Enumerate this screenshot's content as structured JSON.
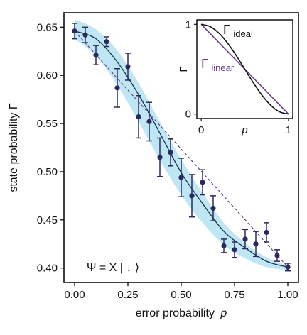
{
  "chart_data": [
    {
      "type": "scatter",
      "xlabel": "error probability",
      "xlabel_var": "p",
      "ylabel": "state probability Γ",
      "xlim": [
        -0.05,
        1.05
      ],
      "ylim": [
        0.385,
        0.665
      ],
      "xticks": [
        "0.00",
        "0.25",
        "0.50",
        "0.75",
        "1.00"
      ],
      "yticks": [
        "0.40",
        "0.45",
        "0.50",
        "0.55",
        "0.60",
        "0.65"
      ],
      "annotation": "Ψ = X | ↓ ⟩",
      "colors": {
        "points": "#2b2a5e",
        "theory": "#17304d",
        "linear": "#6a3d8f",
        "band": "#bfe7f3"
      },
      "series": [
        {
          "kind": "measured",
          "x": [
            0.0,
            0.05,
            0.1,
            0.15,
            0.2,
            0.25,
            0.3,
            0.35,
            0.4,
            0.45,
            0.5,
            0.55,
            0.6,
            0.65,
            0.7,
            0.75,
            0.8,
            0.85,
            0.9,
            0.95,
            1.0
          ],
          "y": [
            0.646,
            0.642,
            0.621,
            0.635,
            0.587,
            0.609,
            0.557,
            0.552,
            0.515,
            0.52,
            0.494,
            0.475,
            0.489,
            0.462,
            0.423,
            0.419,
            0.43,
            0.425,
            0.437,
            0.413,
            0.401
          ],
          "yerr": [
            0.008,
            0.008,
            0.01,
            0.005,
            0.02,
            0.014,
            0.022,
            0.02,
            0.02,
            0.014,
            0.02,
            0.022,
            0.013,
            0.013,
            0.007,
            0.008,
            0.01,
            0.013,
            0.01,
            0.006,
            0.004
          ]
        },
        {
          "kind": "theory",
          "x": [
            0.0,
            0.1,
            0.2,
            0.3,
            0.4,
            0.5,
            0.6,
            0.7,
            0.8,
            0.9,
            1.0
          ],
          "y": [
            0.646,
            0.638,
            0.614,
            0.58,
            0.54,
            0.499,
            0.467,
            0.438,
            0.421,
            0.407,
            0.401
          ],
          "band_lower": [
            0.638,
            0.62,
            0.59,
            0.552,
            0.512,
            0.476,
            0.447,
            0.424,
            0.41,
            0.401,
            0.398
          ],
          "band_upper": [
            0.658,
            0.648,
            0.626,
            0.592,
            0.552,
            0.513,
            0.478,
            0.447,
            0.426,
            0.411,
            0.402
          ]
        },
        {
          "kind": "linear",
          "x": [
            0.0,
            1.0
          ],
          "y": [
            0.646,
            0.401
          ]
        }
      ]
    },
    {
      "type": "line",
      "inset": true,
      "xlabel": "p",
      "ylabel": "Γ",
      "xlim": [
        -0.05,
        1.05
      ],
      "ylim": [
        -0.05,
        1.05
      ],
      "xticks": [
        "0",
        "1"
      ],
      "yticks": [
        "0",
        "1"
      ],
      "series": [
        {
          "name": "Γ",
          "subscript": "ideal",
          "color": "#111111",
          "x": [
            0.0,
            0.1,
            0.2,
            0.3,
            0.4,
            0.5,
            0.6,
            0.7,
            0.8,
            0.9,
            1.0
          ],
          "y": [
            1.0,
            0.976,
            0.905,
            0.794,
            0.655,
            0.5,
            0.345,
            0.206,
            0.095,
            0.024,
            0.0
          ]
        },
        {
          "name": "Γ",
          "subscript": "linear",
          "color": "#6a3d8f",
          "x": [
            0.0,
            1.0
          ],
          "y": [
            1.0,
            0.0
          ]
        }
      ]
    }
  ]
}
